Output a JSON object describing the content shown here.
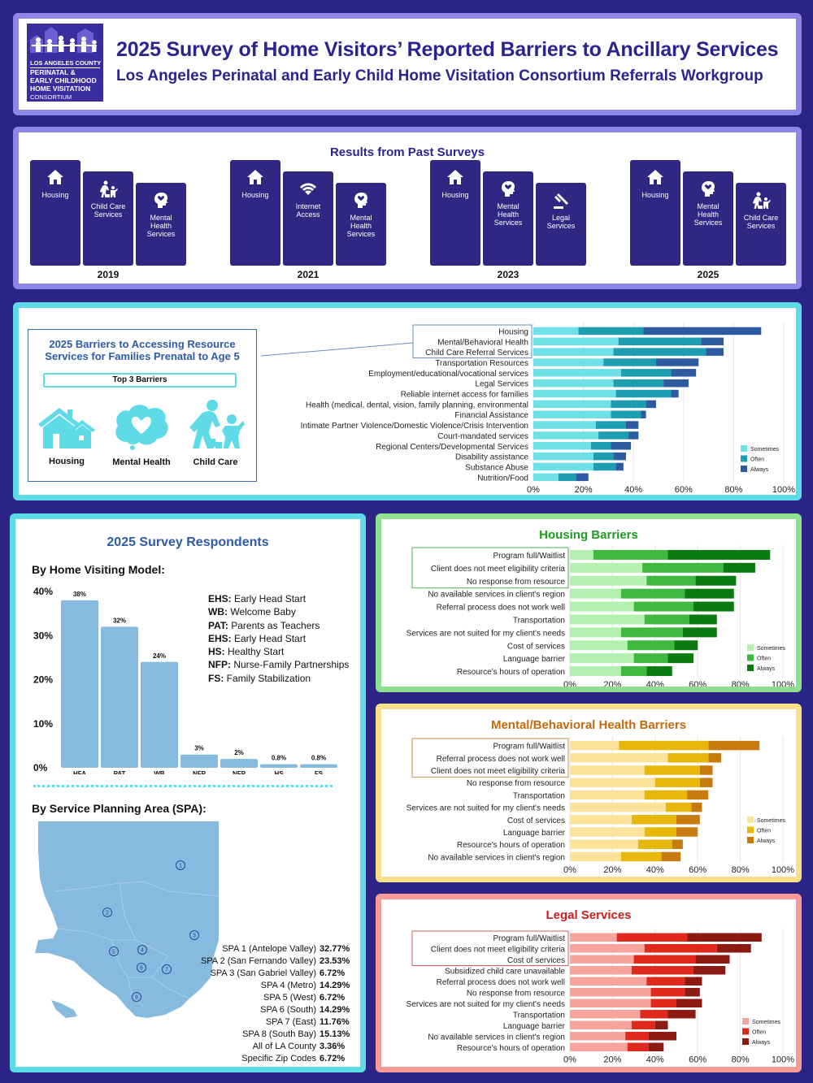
{
  "header": {
    "title": "2025 Survey of Home Visitors’ Reported Barriers to Ancillary Services",
    "subtitle": "Los Angeles Perinatal and Early Child Home Visitation Consortium Referrals Workgroup",
    "logo_lines": [
      "LOS ANGELES COUNTY",
      "PERINATAL &",
      "EARLY CHILDHOOD",
      "HOME VISITATION",
      "CONSORTIUM"
    ]
  },
  "past": {
    "title": "Results from Past Surveys",
    "years": [
      {
        "year": "2019",
        "items": [
          {
            "label": "Housing",
            "icon": "house-icon"
          },
          {
            "label": "Child Care Services",
            "icon": "child-care-icon"
          },
          {
            "label": "Mental Health Services",
            "icon": "mental-health-icon"
          }
        ]
      },
      {
        "year": "2021",
        "items": [
          {
            "label": "Housing",
            "icon": "house-icon"
          },
          {
            "label": "Internet Access",
            "icon": "wifi-icon"
          },
          {
            "label": "Mental Health Services",
            "icon": "mental-health-icon"
          }
        ]
      },
      {
        "year": "2023",
        "items": [
          {
            "label": "Housing",
            "icon": "house-icon"
          },
          {
            "label": "Mental Health Services",
            "icon": "mental-health-icon"
          },
          {
            "label": "Legal Services",
            "icon": "gavel-icon"
          }
        ]
      },
      {
        "year": "2025",
        "items": [
          {
            "label": "Housing",
            "icon": "house-icon"
          },
          {
            "label": "Mental Health Services",
            "icon": "mental-health-icon"
          },
          {
            "label": "Child Care Services",
            "icon": "child-care-icon"
          }
        ]
      }
    ]
  },
  "barriers": {
    "title": "2025 Barriers to Accessing Resource Services for Families Prenatal to Age 5",
    "top3_label": "Top 3 Barriers",
    "top3": [
      {
        "label": "Housing",
        "icon": "house-icon"
      },
      {
        "label": "Mental Health",
        "icon": "mental-health-icon"
      },
      {
        "label": "Child Care",
        "icon": "child-care-icon"
      }
    ]
  },
  "respondents": {
    "title": "2025 Survey Respondents",
    "model_title": "By Home Visiting Model:",
    "abbreviations": [
      {
        "code": "EHS:",
        "name": "Early Head Start"
      },
      {
        "code": "WB:",
        "name": "Welcome Baby"
      },
      {
        "code": "PAT:",
        "name": "Parents as Teachers"
      },
      {
        "code": "EHS:",
        "name": "Early Head Start"
      },
      {
        "code": "HS:",
        "name": "Healthy Start"
      },
      {
        "code": "NFP:",
        "name": "Nurse-Family Partnerships"
      },
      {
        "code": "FS:",
        "name": "Family Stabilization"
      }
    ],
    "spa_title": "By Service Planning Area (SPA):",
    "spa": [
      {
        "name": "SPA 1 (Antelope Valley)",
        "value": "32.77%"
      },
      {
        "name": "SPA 2 (San Fernando Valley)",
        "value": "23.53%"
      },
      {
        "name": "SPA 3 (San Gabriel Valley)",
        "value": "6.72%"
      },
      {
        "name": "SPA 4 (Metro)",
        "value": "14.29%"
      },
      {
        "name": "SPA 5 (West)",
        "value": "6.72%"
      },
      {
        "name": "SPA 6 (South)",
        "value": "14.29%"
      },
      {
        "name": "SPA 7 (East)",
        "value": "11.76%"
      },
      {
        "name": "SPA 8 (South Bay)",
        "value": "15.13%"
      },
      {
        "name": "All of LA County",
        "value": "3.36%"
      },
      {
        "name": "Specific Zip Codes",
        "value": "6.72%"
      }
    ],
    "map_labels": [
      "1",
      "2",
      "3",
      "4",
      "5",
      "6",
      "7",
      "8"
    ]
  },
  "colors": {
    "barriers": [
      "#6fe0e6",
      "#1d9db0",
      "#2d5aa0"
    ],
    "housing": [
      "#b5f0b0",
      "#3fb83f",
      "#0c7a10"
    ],
    "mental": [
      "#fbe49a",
      "#e8b70c",
      "#c77b0e"
    ],
    "legal": [
      "#f8a39b",
      "#e0281d",
      "#8a1a12"
    ],
    "model": "#86badf"
  },
  "chart_data": [
    {
      "id": "barriers",
      "type": "bar",
      "orientation": "horizontal",
      "stacked": true,
      "categories": [
        "Housing",
        "Mental/Behavioral Health",
        "Child Care Referral Services",
        "Transportation Resources",
        "Employment/educational/vocational services",
        "Legal Services",
        "Reliable internet access for families",
        "Health (medical, dental, vision, family planning, environmental",
        "Financial Assistance",
        "Intimate Partner Violence/Domestic Violence/Crisis Intervention",
        "Court-mandated services",
        "Regional Centers/Developmental Services",
        "Disability assistance",
        "Substance Abuse",
        "Nutrition/Food"
      ],
      "series": [
        {
          "name": "Sometimes",
          "values": [
            18,
            34,
            32,
            28,
            35,
            32,
            33,
            31,
            31,
            25,
            26,
            23,
            24,
            24,
            10
          ]
        },
        {
          "name": "Often",
          "values": [
            26,
            33,
            37,
            21,
            20,
            20,
            22,
            14,
            12,
            12,
            12,
            8,
            8,
            9,
            7
          ]
        },
        {
          "name": "Always",
          "values": [
            47,
            9,
            7,
            17,
            10,
            10,
            3,
            4,
            2,
            5,
            4,
            8,
            5,
            3,
            5
          ]
        }
      ],
      "xticks": [
        "0%",
        "20%",
        "40%",
        "60%",
        "80%",
        "100%"
      ],
      "xlim": [
        0,
        100
      ],
      "legend": "bottom-right"
    },
    {
      "id": "model",
      "type": "bar",
      "categories": [
        "HFA",
        "PAT",
        "WB",
        "NFP",
        "NFP",
        "HS",
        "FS"
      ],
      "values": [
        38,
        32,
        24,
        3,
        2,
        0.8,
        0.8
      ],
      "value_labels": [
        "38%",
        "32%",
        "24%",
        "3%",
        "2%",
        "0.8%",
        "0.8%"
      ],
      "yticks": [
        "0%",
        "10%",
        "20%",
        "30%",
        "40%"
      ],
      "ylim": [
        0,
        40
      ]
    },
    {
      "id": "housing",
      "title": "Housing Barriers",
      "type": "bar",
      "orientation": "horizontal",
      "stacked": true,
      "categories": [
        "Program full/Waitlist",
        "Client does not meet eligibility criteria",
        "No response from resource",
        "No available services in client's region",
        "Referral process does not work well",
        "Transportation",
        "Services are not suited for my client's needs",
        "Cost of services",
        "Language barrier",
        "Resource's hours of operation"
      ],
      "series": [
        {
          "name": "Sometimes",
          "values": [
            11,
            34,
            36,
            24,
            30,
            35,
            24,
            27,
            30,
            24
          ]
        },
        {
          "name": "Often",
          "values": [
            35,
            38,
            23,
            30,
            28,
            21,
            29,
            22,
            16,
            12
          ]
        },
        {
          "name": "Always",
          "values": [
            48,
            15,
            19,
            23,
            19,
            13,
            16,
            11,
            12,
            12
          ]
        }
      ],
      "xticks": [
        "0%",
        "20%",
        "40%",
        "60%",
        "80%",
        "100%"
      ],
      "xlim": [
        0,
        100
      ],
      "legend": "right"
    },
    {
      "id": "mental",
      "title": "Mental/Behavioral Health Barriers",
      "type": "bar",
      "orientation": "horizontal",
      "stacked": true,
      "categories": [
        "Program full/Waitlist",
        "Referral process does not work well",
        "Client does not meet eligibility criteria",
        "No response from resource",
        "Transportation",
        "Services are not suited for my client's needs",
        "Cost of services",
        "Language barrier",
        "Resource's hours of operation",
        "No available services in client's region"
      ],
      "series": [
        {
          "name": "Sometimes",
          "values": [
            23,
            46,
            35,
            40,
            35,
            45,
            29,
            35,
            32,
            24
          ]
        },
        {
          "name": "Often",
          "values": [
            42,
            19,
            26,
            21,
            20,
            12,
            21,
            15,
            16,
            19
          ]
        },
        {
          "name": "Always",
          "values": [
            24,
            6,
            6,
            6,
            10,
            5,
            11,
            10,
            5,
            9
          ]
        }
      ],
      "xticks": [
        "0%",
        "20%",
        "40%",
        "60%",
        "80%",
        "100%"
      ],
      "xlim": [
        0,
        100
      ],
      "legend": "right"
    },
    {
      "id": "legal",
      "title": "Legal Services",
      "type": "bar",
      "orientation": "horizontal",
      "stacked": true,
      "categories": [
        "Program full/Waitlist",
        "Client does not meet eligibility criteria",
        "Cost of services",
        "Subsidized child care unavailable",
        "Referral process does not work well",
        "No response from resource",
        "Services are not suited for my client's needs",
        "Transportation",
        "Language barrier",
        "No available services in client's region",
        "Resource's hours of operation"
      ],
      "series": [
        {
          "name": "Sometimes",
          "values": [
            22,
            35,
            30,
            29,
            36,
            38,
            38,
            33,
            29,
            26,
            27
          ]
        },
        {
          "name": "Often",
          "values": [
            33,
            34,
            29,
            29,
            18,
            16,
            12,
            13,
            11,
            11,
            10
          ]
        },
        {
          "name": "Always",
          "values": [
            35,
            16,
            16,
            15,
            8,
            7,
            12,
            13,
            6,
            13,
            7
          ]
        }
      ],
      "xticks": [
        "0%",
        "20%",
        "40%",
        "60%",
        "80%",
        "100%"
      ],
      "xlim": [
        0,
        100
      ],
      "legend": "right"
    }
  ]
}
